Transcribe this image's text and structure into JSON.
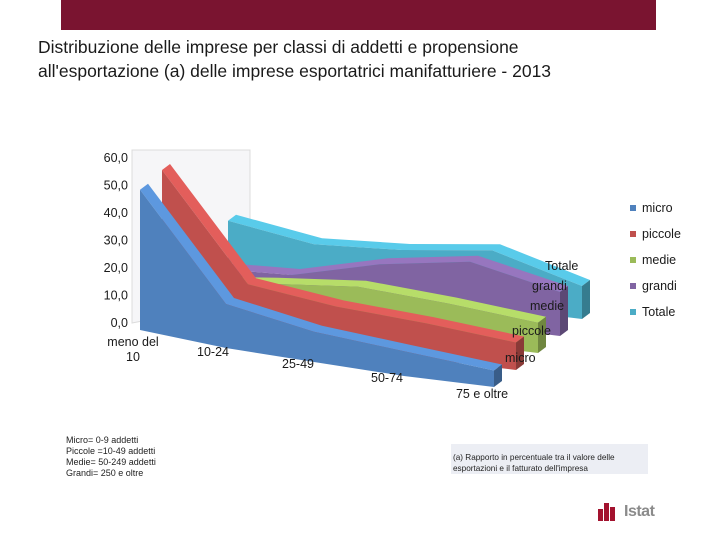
{
  "header": {
    "title_line1": "Distribuzione delle imprese per classi di addetti e propensione",
    "title_line2": "all'esportazione (a) delle imprese esportatrici manifatturiere - 2013"
  },
  "chart_data": {
    "type": "area",
    "subtype": "3d-stacked-depth",
    "categories": [
      "meno del 10",
      "10-24",
      "25-49",
      "50-74",
      "75 e oltre"
    ],
    "y_ticks": [
      "60,0",
      "50,0",
      "40,0",
      "30,0",
      "20,0",
      "10,0",
      "0,0"
    ],
    "ylim": [
      0,
      60
    ],
    "depth_labels": [
      "micro",
      "piccole",
      "medie",
      "grandi",
      "Totale"
    ],
    "series": [
      {
        "name": "micro",
        "color": "#4f81bd",
        "values": [
          51,
          16,
          11,
          9,
          6
        ]
      },
      {
        "name": "piccole",
        "color": "#c0504d",
        "values": [
          52,
          17,
          14,
          13,
          10
        ]
      },
      {
        "name": "medie",
        "color": "#9bbb59",
        "values": [
          5,
          11,
          15,
          14,
          11
        ]
      },
      {
        "name": "grandi",
        "color": "#8064a2",
        "values": [
          4,
          8,
          17,
          23,
          16
        ]
      },
      {
        "name": "Totale",
        "color": "#4bacc6",
        "values": [
          15,
          13,
          16,
          21,
          12
        ]
      }
    ],
    "legend_position": "right",
    "grid": false
  },
  "legend": [
    {
      "label": "micro",
      "color": "#4f81bd"
    },
    {
      "label": "piccole",
      "color": "#c0504d"
    },
    {
      "label": "medie",
      "color": "#9bbb59"
    },
    {
      "label": "grandi",
      "color": "#8064a2"
    },
    {
      "label": "Totale",
      "color": "#4bacc6"
    }
  ],
  "notes": {
    "left_lines": [
      "Micro= 0-9 addetti",
      "Piccole =10-49 addetti",
      "Medie= 50-249 addetti",
      "Grandi= 250 e oltre"
    ],
    "right_text": "(a) Rapporto in percentuale tra il valore delle esportazioni e il fatturato dell'impresa"
  },
  "logo": {
    "text": "Istat",
    "brand_color": "#a3122e"
  }
}
